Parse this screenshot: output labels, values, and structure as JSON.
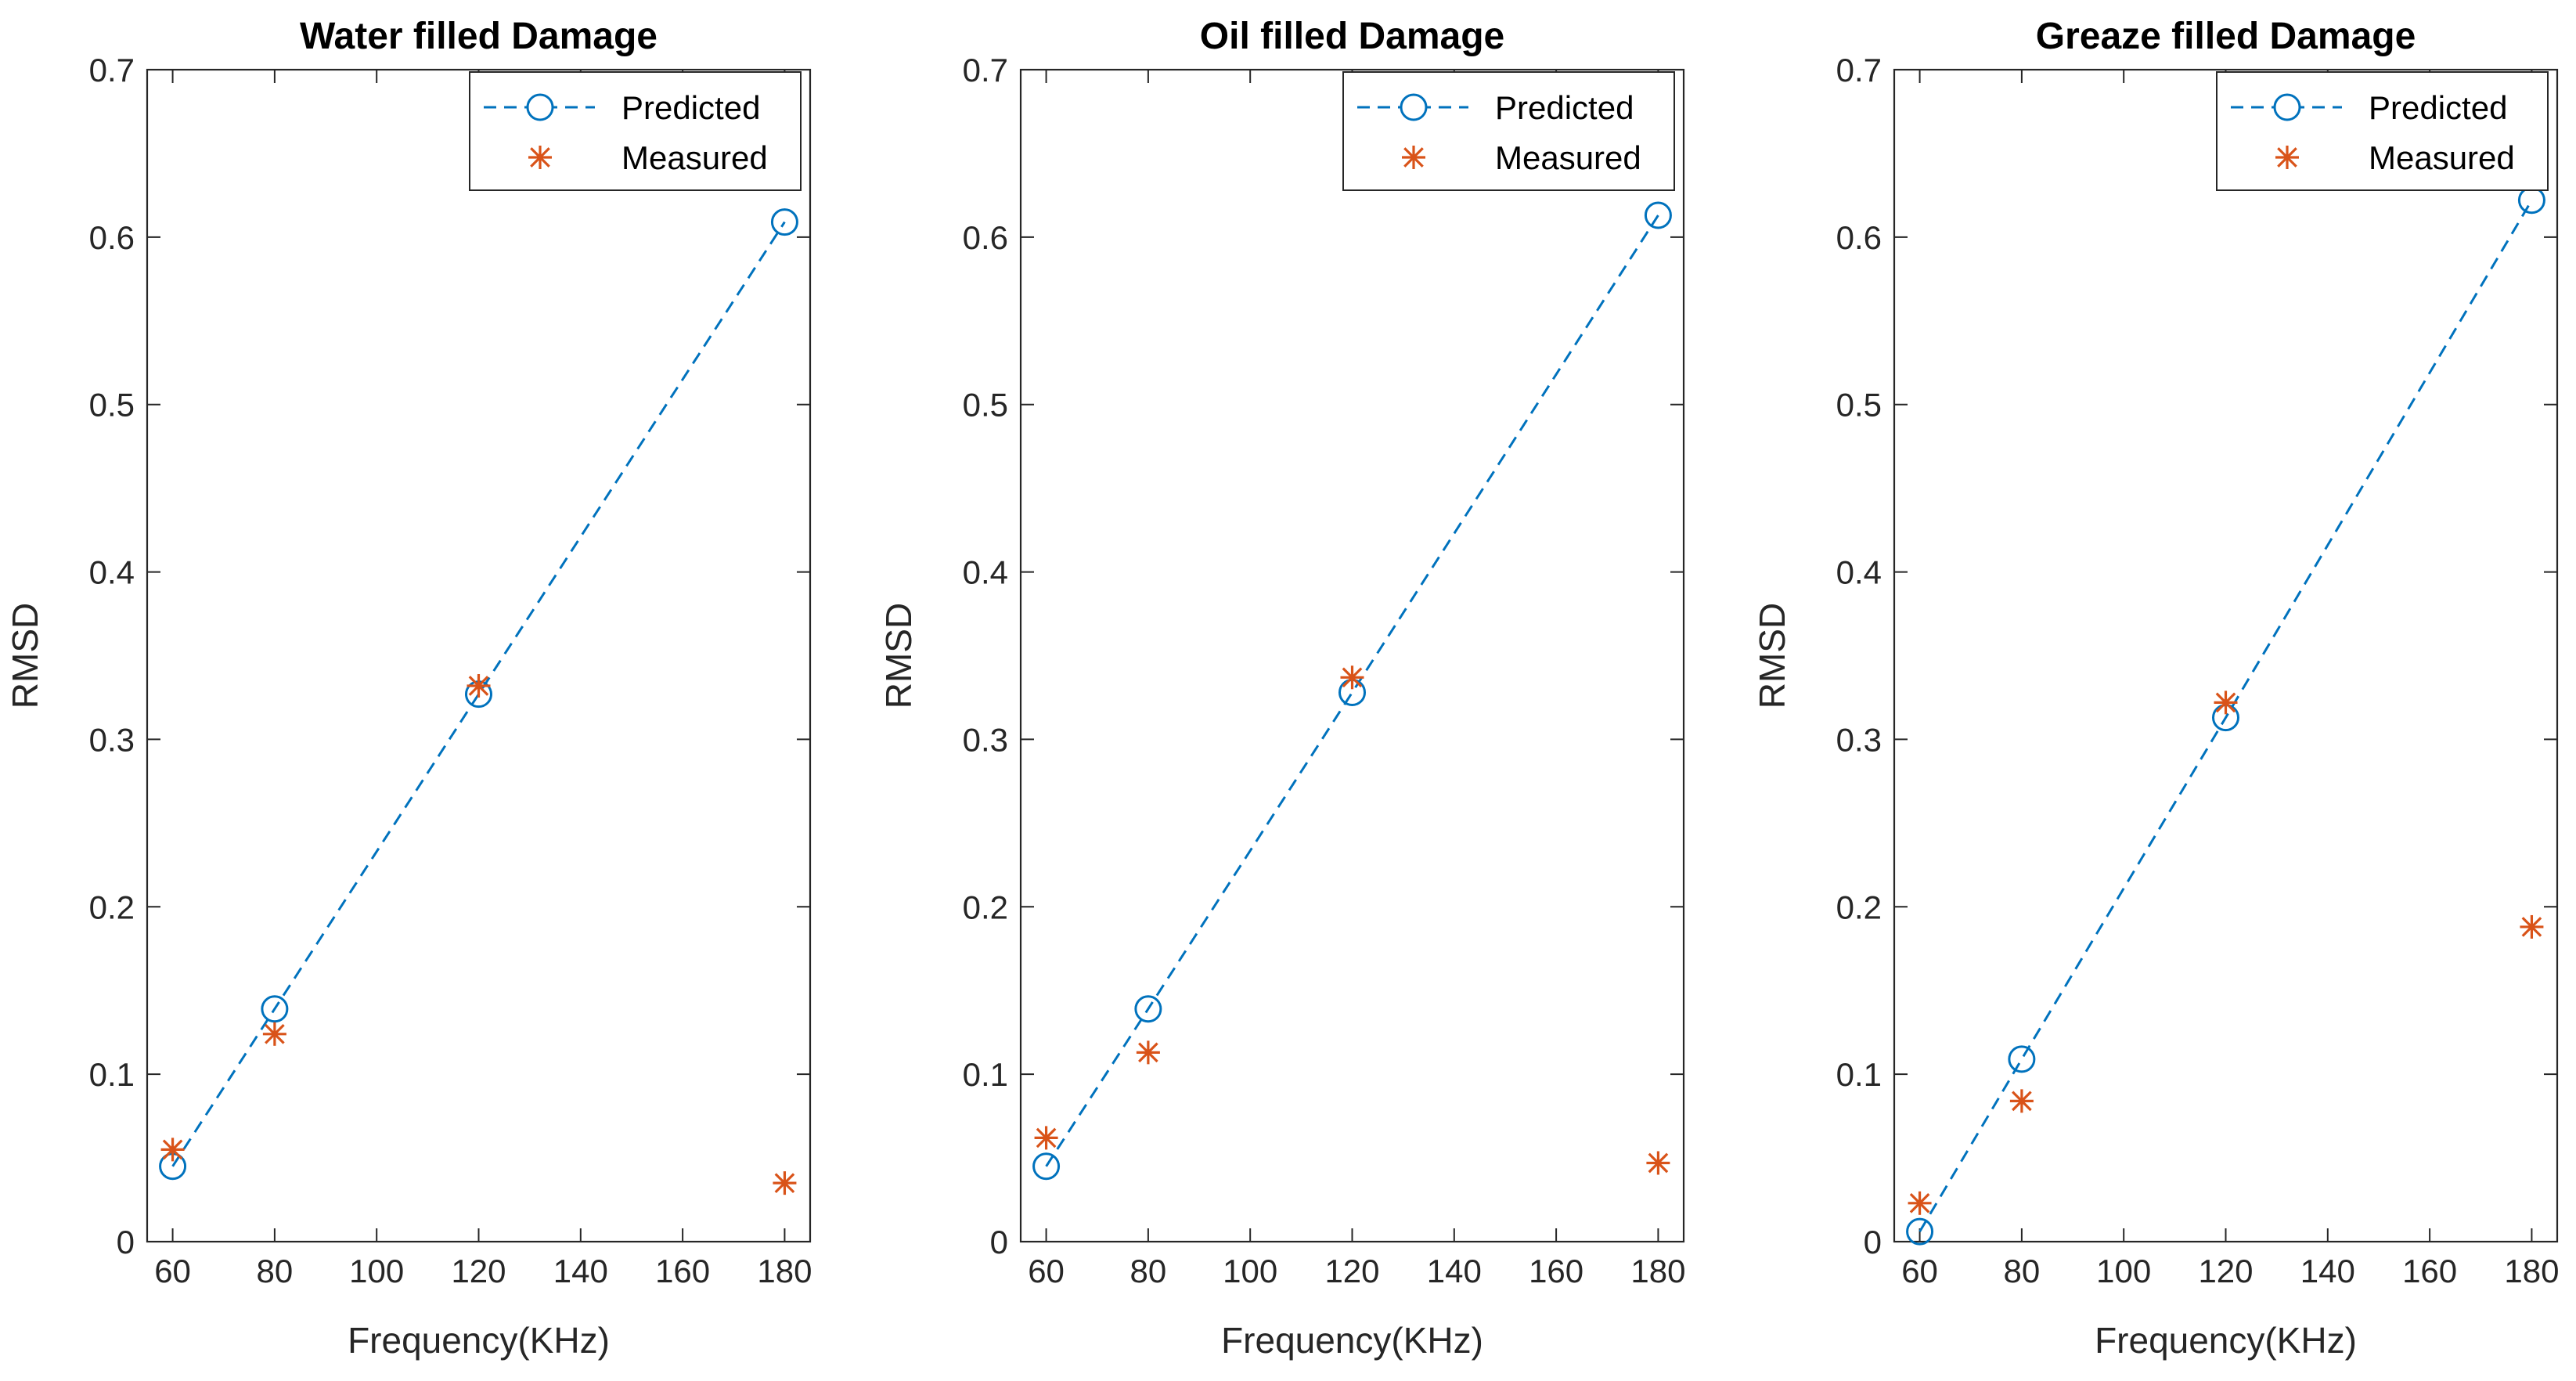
{
  "chart_data": [
    {
      "type": "line",
      "title": "Water filled Damage",
      "xlabel": "Frequency(KHz)",
      "ylabel": "RMSD",
      "xlim": [
        55,
        185
      ],
      "ylim": [
        0,
        0.7
      ],
      "xticks": [
        60,
        80,
        100,
        120,
        140,
        160,
        180
      ],
      "yticks": [
        0,
        0.1,
        0.2,
        0.3,
        0.4,
        0.5,
        0.6,
        0.7
      ],
      "ytick_labels": [
        "0",
        "0.1",
        "0.2",
        "0.3",
        "0.4",
        "0.5",
        "0.6",
        "0.7"
      ],
      "legend_position": "top-right",
      "series": [
        {
          "name": "Predicted",
          "style": "dashed-line-circle",
          "color": "#0072BD",
          "x": [
            60,
            80,
            120,
            180
          ],
          "values": [
            0.045,
            0.139,
            0.327,
            0.609
          ]
        },
        {
          "name": "Measured",
          "style": "asterisk",
          "color": "#D95319",
          "x": [
            60,
            80,
            120,
            180
          ],
          "values": [
            0.055,
            0.124,
            0.332,
            0.035
          ]
        }
      ]
    },
    {
      "type": "line",
      "title": "Oil filled Damage",
      "xlabel": "Frequency(KHz)",
      "ylabel": "RMSD",
      "xlim": [
        55,
        185
      ],
      "ylim": [
        0,
        0.7
      ],
      "xticks": [
        60,
        80,
        100,
        120,
        140,
        160,
        180
      ],
      "yticks": [
        0,
        0.1,
        0.2,
        0.3,
        0.4,
        0.5,
        0.6,
        0.7
      ],
      "ytick_labels": [
        "0",
        "0.1",
        "0.2",
        "0.3",
        "0.4",
        "0.5",
        "0.6",
        "0.7"
      ],
      "legend_position": "top-right",
      "series": [
        {
          "name": "Predicted",
          "style": "dashed-line-circle",
          "color": "#0072BD",
          "x": [
            60,
            80,
            120,
            180
          ],
          "values": [
            0.045,
            0.139,
            0.328,
            0.613
          ]
        },
        {
          "name": "Measured",
          "style": "asterisk",
          "color": "#D95319",
          "x": [
            60,
            80,
            120,
            180
          ],
          "values": [
            0.062,
            0.113,
            0.337,
            0.047
          ]
        }
      ]
    },
    {
      "type": "line",
      "title": "Greaze filled Damage",
      "xlabel": "Frequency(KHz)",
      "ylabel": "RMSD",
      "xlim": [
        55,
        185
      ],
      "ylim": [
        0,
        0.7
      ],
      "xticks": [
        60,
        80,
        100,
        120,
        140,
        160,
        180
      ],
      "yticks": [
        0,
        0.1,
        0.2,
        0.3,
        0.4,
        0.5,
        0.6,
        0.7
      ],
      "ytick_labels": [
        "0",
        "0.1",
        "0.2",
        "0.3",
        "0.4",
        "0.5",
        "0.6",
        "0.7"
      ],
      "legend_position": "top-right",
      "series": [
        {
          "name": "Predicted",
          "style": "dashed-line-circle",
          "color": "#0072BD",
          "x": [
            60,
            80,
            120,
            180
          ],
          "values": [
            0.006,
            0.109,
            0.313,
            0.622
          ]
        },
        {
          "name": "Measured",
          "style": "asterisk",
          "color": "#D95319",
          "x": [
            60,
            80,
            120,
            180
          ],
          "values": [
            0.023,
            0.084,
            0.322,
            0.188
          ]
        }
      ]
    }
  ]
}
